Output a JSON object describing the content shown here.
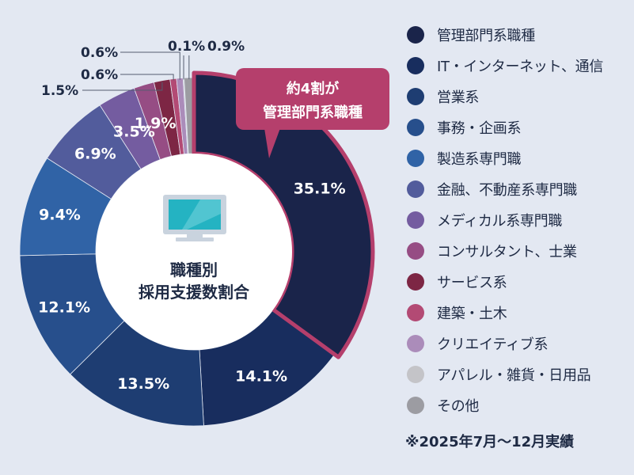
{
  "chart_data": {
    "type": "pie",
    "title": "",
    "center_text": [
      "職種別",
      "採用支援数割合"
    ],
    "callout": [
      "約4割が",
      "管理部門系職種"
    ],
    "slices": [
      {
        "name": "管理部門系職種",
        "value": 35.1,
        "label": "35.1%",
        "color": "#1a244a",
        "highlight": true
      },
      {
        "name": "IT・インターネット、通信",
        "value": 14.1,
        "label": "14.1%",
        "color": "#182d5e"
      },
      {
        "name": "営業系",
        "value": 13.5,
        "label": "13.5%",
        "color": "#1e3d72"
      },
      {
        "name": "事務・企画系",
        "value": 12.1,
        "label": "12.1%",
        "color": "#274f8c"
      },
      {
        "name": "製造系専門職",
        "value": 9.4,
        "label": "9.4%",
        "color": "#3063a6"
      },
      {
        "name": "金融、不動産系専門職",
        "value": 6.9,
        "label": "6.9%",
        "color": "#525c9c"
      },
      {
        "name": "メディカル系専門職",
        "value": 3.5,
        "label": "3.5%",
        "color": "#745ca0"
      },
      {
        "name": "コンサルタント、士業",
        "value": 1.9,
        "label": "1.9%",
        "color": "#964d84"
      },
      {
        "name": "サービス系",
        "value": 1.5,
        "label": "1.5%",
        "color": "#7d2644"
      },
      {
        "name": "建築・土木",
        "value": 0.6,
        "label": "0.6%",
        "color": "#b34a74"
      },
      {
        "name": "クリエイティブ系",
        "value": 0.6,
        "label": "0.6%",
        "color": "#ab8cba"
      },
      {
        "name": "アパレル・雑貨・日用品",
        "value": 0.1,
        "label": "0.1%",
        "color": "#c4c4c8"
      },
      {
        "name": "その他",
        "value": 0.9,
        "label": "0.9%",
        "color": "#9c9ca2"
      }
    ],
    "legend_placement": "right",
    "highlight_color": "#b53f6c"
  },
  "footnote": "※2025年7月〜12月実績"
}
